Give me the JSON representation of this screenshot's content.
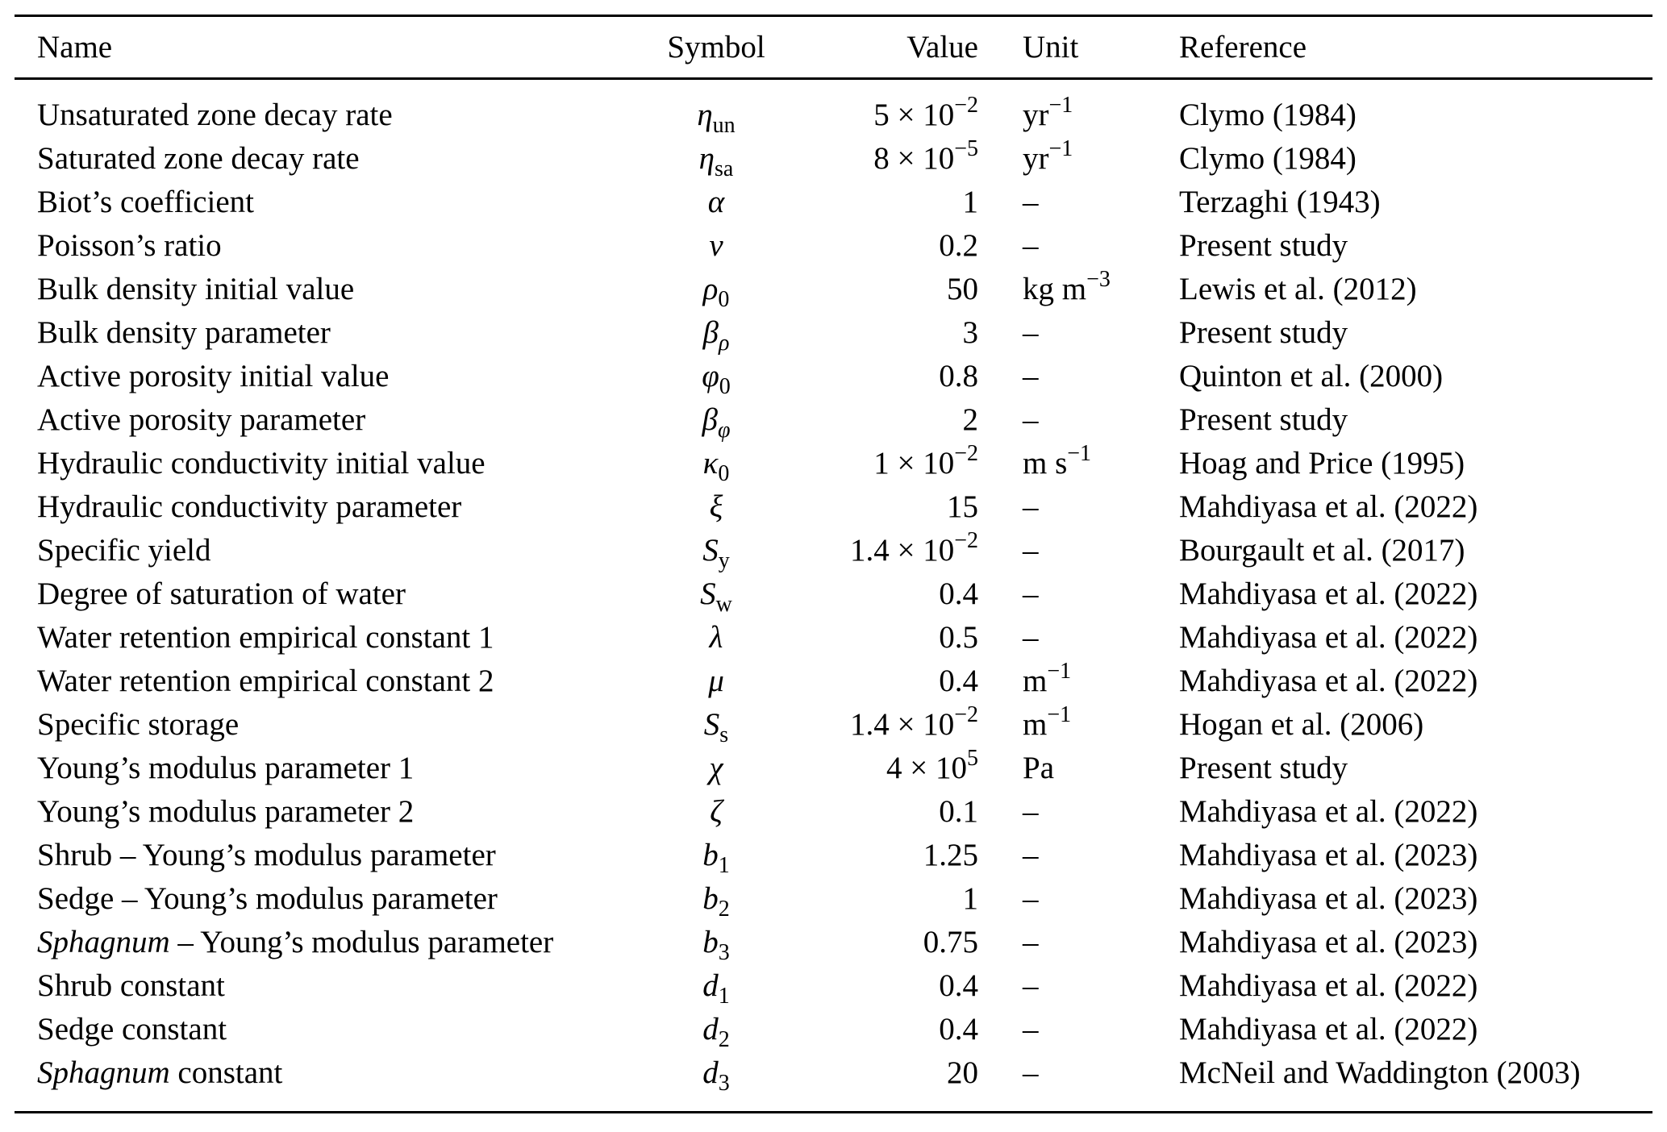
{
  "colors": {
    "background": "#ffffff",
    "text": "#000000",
    "rule": "#000000"
  },
  "table": {
    "headers": {
      "name": "Name",
      "symbol": "Symbol",
      "value": "Value",
      "unit": "Unit",
      "reference": "Reference"
    },
    "rows": [
      {
        "name_it": "",
        "name": "Unsaturated zone decay rate",
        "symbol": "η",
        "symbol_sub_it": "",
        "symbol_sub": "un",
        "value": "5 × 10",
        "value_exp": "−2",
        "unit": "yr",
        "unit_exp": "−1",
        "reference": "Clymo (1984)"
      },
      {
        "name_it": "",
        "name": "Saturated zone decay rate",
        "symbol": "η",
        "symbol_sub_it": "",
        "symbol_sub": "sa",
        "value": "8 × 10",
        "value_exp": "−5",
        "unit": "yr",
        "unit_exp": "−1",
        "reference": "Clymo (1984)"
      },
      {
        "name_it": "",
        "name": "Biot’s coefficient",
        "symbol": "α",
        "symbol_sub_it": "",
        "symbol_sub": "",
        "value": "1",
        "value_exp": "",
        "unit": "–",
        "unit_exp": "",
        "reference": "Terzaghi (1943)"
      },
      {
        "name_it": "",
        "name": "Poisson’s ratio",
        "symbol": "ν",
        "symbol_sub_it": "",
        "symbol_sub": "",
        "value": "0.2",
        "value_exp": "",
        "unit": "–",
        "unit_exp": "",
        "reference": "Present study"
      },
      {
        "name_it": "",
        "name": "Bulk density initial value",
        "symbol": "ρ",
        "symbol_sub_it": "",
        "symbol_sub": "0",
        "value": "50",
        "value_exp": "",
        "unit": "kg m",
        "unit_exp": "−3",
        "reference": "Lewis et al. (2012)"
      },
      {
        "name_it": "",
        "name": "Bulk density parameter",
        "symbol": "β",
        "symbol_sub_it": "ρ",
        "symbol_sub": "",
        "value": "3",
        "value_exp": "",
        "unit": "–",
        "unit_exp": "",
        "reference": "Present study"
      },
      {
        "name_it": "",
        "name": "Active porosity initial value",
        "symbol": "φ",
        "symbol_sub_it": "",
        "symbol_sub": "0",
        "value": "0.8",
        "value_exp": "",
        "unit": "–",
        "unit_exp": "",
        "reference": "Quinton et al. (2000)"
      },
      {
        "name_it": "",
        "name": "Active porosity parameter",
        "symbol": "β",
        "symbol_sub_it": "φ",
        "symbol_sub": "",
        "value": "2",
        "value_exp": "",
        "unit": "–",
        "unit_exp": "",
        "reference": "Present study"
      },
      {
        "name_it": "",
        "name": "Hydraulic conductivity initial value",
        "symbol": "κ",
        "symbol_sub_it": "",
        "symbol_sub": "0",
        "value": "1 × 10",
        "value_exp": "−2",
        "unit": "m s",
        "unit_exp": "−1",
        "reference": "Hoag and Price (1995)"
      },
      {
        "name_it": "",
        "name": "Hydraulic conductivity parameter",
        "symbol": "ξ",
        "symbol_sub_it": "",
        "symbol_sub": "",
        "value": "15",
        "value_exp": "",
        "unit": "–",
        "unit_exp": "",
        "reference": "Mahdiyasa et al. (2022)"
      },
      {
        "name_it": "",
        "name": "Specific yield",
        "symbol": "S",
        "symbol_sub_it": "",
        "symbol_sub": "y",
        "value": "1.4 × 10",
        "value_exp": "−2",
        "unit": "–",
        "unit_exp": "",
        "reference": "Bourgault et al. (2017)"
      },
      {
        "name_it": "",
        "name": "Degree of saturation of water",
        "symbol": "S",
        "symbol_sub_it": "",
        "symbol_sub": "w",
        "value": "0.4",
        "value_exp": "",
        "unit": "–",
        "unit_exp": "",
        "reference": "Mahdiyasa et al. (2022)"
      },
      {
        "name_it": "",
        "name": "Water retention empirical constant 1",
        "symbol": "λ",
        "symbol_sub_it": "",
        "symbol_sub": "",
        "value": "0.5",
        "value_exp": "",
        "unit": "–",
        "unit_exp": "",
        "reference": "Mahdiyasa et al. (2022)"
      },
      {
        "name_it": "",
        "name": "Water retention empirical constant 2",
        "symbol": "μ",
        "symbol_sub_it": "",
        "symbol_sub": "",
        "value": "0.4",
        "value_exp": "",
        "unit": "m",
        "unit_exp": "−1",
        "reference": "Mahdiyasa et al. (2022)"
      },
      {
        "name_it": "",
        "name": "Specific storage",
        "symbol": "S",
        "symbol_sub_it": "",
        "symbol_sub": "s",
        "value": "1.4 × 10",
        "value_exp": "−2",
        "unit": "m",
        "unit_exp": "−1",
        "reference": "Hogan et al. (2006)"
      },
      {
        "name_it": "",
        "name": "Young’s modulus parameter 1",
        "symbol": "χ",
        "symbol_sub_it": "",
        "symbol_sub": "",
        "value": "4 × 10",
        "value_exp": "5",
        "unit": "Pa",
        "unit_exp": "",
        "reference": "Present study"
      },
      {
        "name_it": "",
        "name": "Young’s modulus parameter 2",
        "symbol": "ζ",
        "symbol_sub_it": "",
        "symbol_sub": "",
        "value": "0.1",
        "value_exp": "",
        "unit": "–",
        "unit_exp": "",
        "reference": "Mahdiyasa et al. (2022)"
      },
      {
        "name_it": "",
        "name": "Shrub – Young’s modulus parameter",
        "symbol": "b",
        "symbol_sub_it": "",
        "symbol_sub": "1",
        "value": "1.25",
        "value_exp": "",
        "unit": "–",
        "unit_exp": "",
        "reference": "Mahdiyasa et al. (2023)"
      },
      {
        "name_it": "",
        "name": "Sedge – Young’s modulus parameter",
        "symbol": "b",
        "symbol_sub_it": "",
        "symbol_sub": "2",
        "value": "1",
        "value_exp": "",
        "unit": "–",
        "unit_exp": "",
        "reference": "Mahdiyasa et al. (2023)"
      },
      {
        "name_it": "Sphagnum",
        "name": " – Young’s modulus parameter",
        "symbol": "b",
        "symbol_sub_it": "",
        "symbol_sub": "3",
        "value": "0.75",
        "value_exp": "",
        "unit": "–",
        "unit_exp": "",
        "reference": "Mahdiyasa et al. (2023)"
      },
      {
        "name_it": "",
        "name": "Shrub constant",
        "symbol": "d",
        "symbol_sub_it": "",
        "symbol_sub": "1",
        "value": "0.4",
        "value_exp": "",
        "unit": "–",
        "unit_exp": "",
        "reference": "Mahdiyasa et al. (2022)"
      },
      {
        "name_it": "",
        "name": "Sedge constant",
        "symbol": "d",
        "symbol_sub_it": "",
        "symbol_sub": "2",
        "value": "0.4",
        "value_exp": "",
        "unit": "–",
        "unit_exp": "",
        "reference": "Mahdiyasa et al. (2022)"
      },
      {
        "name_it": "Sphagnum",
        "name": " constant",
        "symbol": "d",
        "symbol_sub_it": "",
        "symbol_sub": "3",
        "value": "20",
        "value_exp": "",
        "unit": "–",
        "unit_exp": "",
        "reference": "McNeil and Waddington (2003)"
      }
    ]
  }
}
